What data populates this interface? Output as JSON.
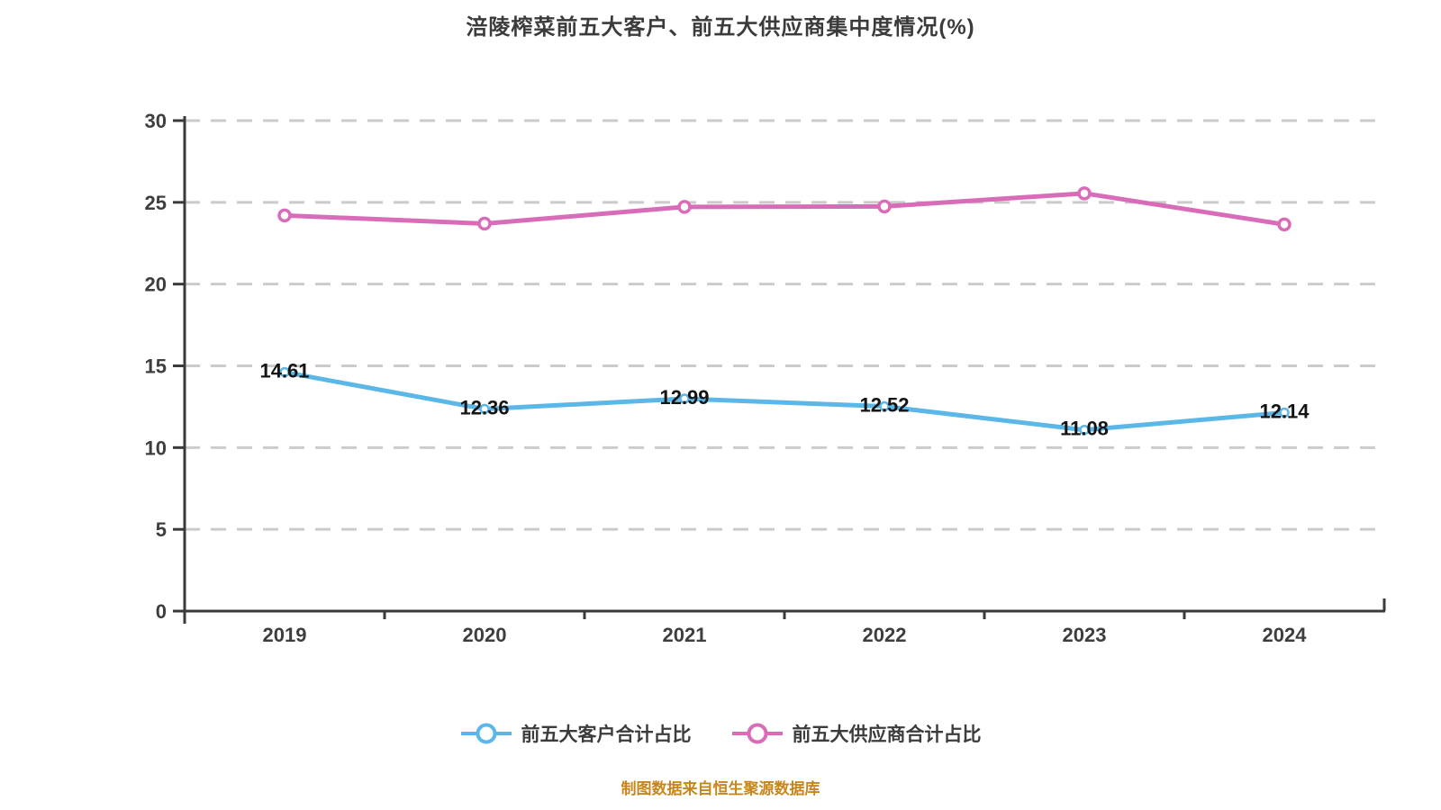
{
  "chart_data": {
    "type": "line",
    "title": "涪陵榨菜前五大客户、前五大供应商集中度情况(%)",
    "categories": [
      "2019",
      "2020",
      "2021",
      "2022",
      "2023",
      "2024"
    ],
    "series": [
      {
        "name": "前五大客户合计占比",
        "color": "#5bb7e8",
        "values": [
          14.61,
          12.36,
          12.99,
          12.52,
          11.08,
          12.14
        ],
        "point_labels": [
          "14.61",
          "12.36",
          "12.99",
          "12.52",
          "11.08",
          "12.14"
        ],
        "show_point_labels": true
      },
      {
        "name": "前五大供应商合计占比",
        "color": "#d96cb8",
        "values": [
          24.2,
          23.7,
          24.72,
          24.75,
          25.55,
          23.65
        ],
        "point_labels": [],
        "show_point_labels": false
      }
    ],
    "ylim": [
      0,
      30
    ],
    "yticks": [
      0,
      5,
      10,
      15,
      20,
      25,
      30
    ],
    "grid": "horizontal dashed",
    "legend_position": "bottom",
    "style": {
      "grid_color": "#cbcbcb",
      "axis_color": "#3a3a3a",
      "tick_label_color": "#3e3e3e",
      "point_label_color": "#141414",
      "title_color": "#3b3b3b"
    }
  },
  "footer": {
    "text": "制图数据来自恒生聚源数据库",
    "color": "#c8861a"
  }
}
